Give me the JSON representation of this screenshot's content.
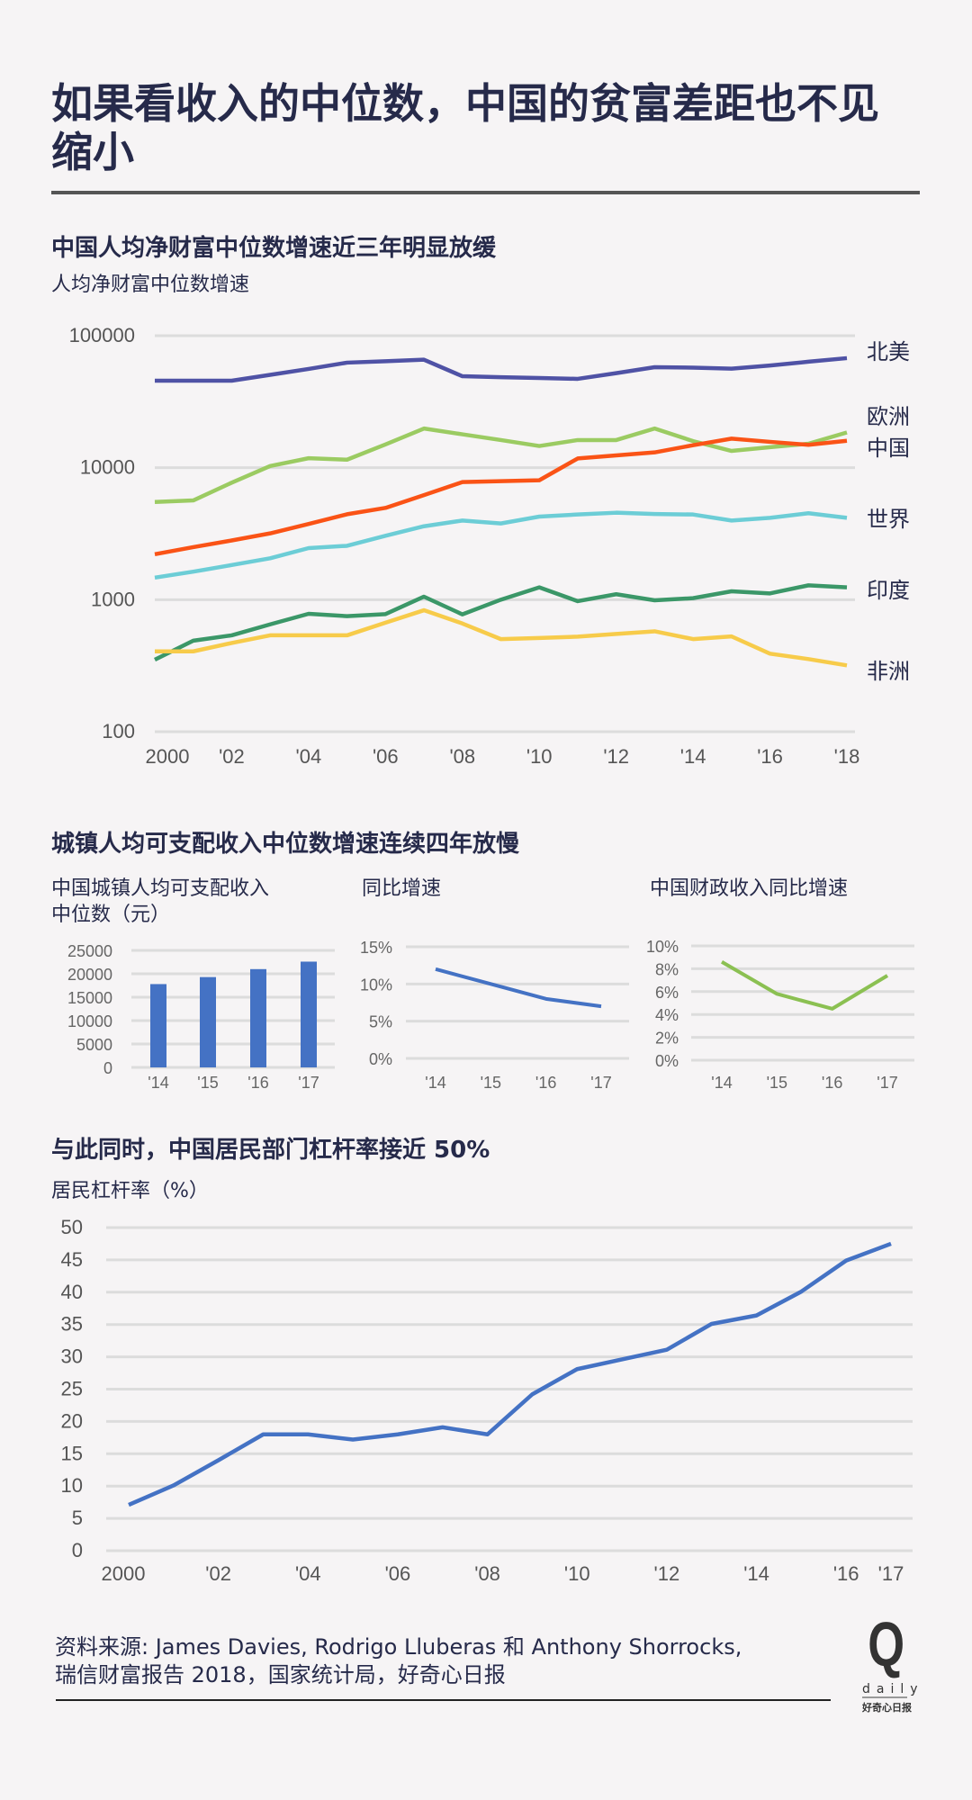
{
  "title": "如果看收入的中位数，中国的贫富差距也不见缩小",
  "section1": {
    "title": "中国人均净财富中位数增速近三年明显放缓",
    "unit": "人均净财富中位数增速"
  },
  "section2": {
    "title": "城镇人均可支配收入中位数增速连续四年放慢",
    "chart1_title_l1": "中国城镇人均可支配收入",
    "chart1_title_l2": "中位数（元）",
    "chart2_title": "同比增速",
    "chart3_title": "中国财政收入同比增速"
  },
  "section3": {
    "title": "与此同时，中国居民部门杠杆率接近 50%",
    "unit": "居民杠杆率（%）"
  },
  "footer": {
    "line1": "资料来源: James Davies, Rodrigo Lluberas 和 Anthony Shorrocks,",
    "line2": "瑞信财富报告 2018，国家统计局，好奇心日报",
    "logo_letter": "Q",
    "logo_word": "daily",
    "logo_cn": "好奇心日报"
  },
  "chart_data": [
    {
      "type": "line",
      "scale": "log",
      "ylim": [
        100,
        100000
      ],
      "yticks": [
        "100000",
        "10000",
        "1000",
        "100"
      ],
      "grid": true,
      "legend": "right (direct labels)",
      "x": [
        2000,
        2001,
        2002,
        2003,
        2004,
        2005,
        2006,
        2007,
        2008,
        2009,
        2010,
        2011,
        2012,
        2013,
        2014,
        2015,
        2016,
        2017,
        2018
      ],
      "xticks": [
        {
          "year": 2000,
          "label": "2000"
        },
        {
          "year": 2002,
          "label": "'02"
        },
        {
          "year": 2004,
          "label": "'04"
        },
        {
          "year": 2006,
          "label": "'06"
        },
        {
          "year": 2008,
          "label": "'08"
        },
        {
          "year": 2010,
          "label": "'10"
        },
        {
          "year": 2012,
          "label": "'12"
        },
        {
          "year": 2014,
          "label": "'14"
        },
        {
          "year": 2016,
          "label": "'16"
        },
        {
          "year": 2018,
          "label": "'18"
        }
      ],
      "series": [
        {
          "name": "北美",
          "color": "#4f52a5",
          "values": [
            45600,
            45600,
            45600,
            50500,
            56000,
            62500,
            64000,
            65800,
            49300,
            48500,
            47800,
            47100,
            52000,
            57700,
            57300,
            56300,
            59500,
            63500,
            67600
          ]
        },
        {
          "name": "欧洲",
          "color": "#9bcb62",
          "values": [
            5500,
            5650,
            7700,
            10300,
            11800,
            11500,
            15000,
            19800,
            17900,
            16200,
            14600,
            16200,
            16200,
            19800,
            15900,
            13400,
            14300,
            15200,
            18500
          ]
        },
        {
          "name": "中国",
          "color": "#fa5316",
          "values": [
            2210,
            2500,
            2810,
            3180,
            3750,
            4440,
            4960,
            6200,
            7780,
            7900,
            8030,
            11750,
            12400,
            13060,
            14800,
            16600,
            15700,
            14900,
            16000
          ]
        },
        {
          "name": "世界",
          "color": "#6ccdd6",
          "values": [
            1470,
            1630,
            1830,
            2060,
            2460,
            2560,
            3050,
            3600,
            3980,
            3780,
            4260,
            4420,
            4560,
            4460,
            4420,
            3980,
            4170,
            4520,
            4170
          ]
        },
        {
          "name": "印度",
          "color": "#3b9768",
          "values": [
            351,
            489,
            537,
            650,
            782,
            750,
            778,
            1054,
            774,
            1000,
            1240,
            975,
            1100,
            990,
            1027,
            1158,
            1116,
            1285,
            1240
          ]
        },
        {
          "name": "非洲",
          "color": "#f7cb4a",
          "values": [
            406,
            406,
            470,
            537,
            537,
            537,
            670,
            832,
            660,
            503,
            513,
            525,
            550,
            576,
            503,
            527,
            390,
            355,
            318
          ]
        }
      ]
    },
    {
      "type": "bar",
      "categories": [
        "'14",
        "'15",
        "'16",
        "'17"
      ],
      "values": [
        17800,
        19300,
        21000,
        22600
      ],
      "ylim": [
        0,
        25000
      ],
      "yticks": [
        "25000",
        "20000",
        "15000",
        "10000",
        "5000",
        "0"
      ],
      "color": "#4472c4",
      "grid": true
    },
    {
      "type": "line",
      "categories": [
        "'14",
        "'15",
        "'16",
        "'17"
      ],
      "values": [
        12,
        10,
        8,
        7
      ],
      "ylim": [
        0,
        15
      ],
      "yticks": [
        "15%",
        "10%",
        "5%",
        "0%"
      ],
      "color": "#4472c4",
      "grid": true
    },
    {
      "type": "line",
      "categories": [
        "'14",
        "'15",
        "'16",
        "'17"
      ],
      "values": [
        8.6,
        5.8,
        4.5,
        7.4
      ],
      "ylim": [
        0,
        10
      ],
      "yticks": [
        "10%",
        "8%",
        "6%",
        "4%",
        "2%",
        "0%"
      ],
      "color": "#8bc052",
      "grid": true
    },
    {
      "type": "line",
      "x": [
        2000,
        2001,
        2002,
        2003,
        2004,
        2005,
        2006,
        2007,
        2008,
        2009,
        2010,
        2011,
        2012,
        2013,
        2014,
        2015,
        2016,
        2017
      ],
      "values": [
        7.1,
        10.1,
        14,
        18,
        18,
        17.2,
        18,
        19.1,
        18,
        24.2,
        28.1,
        29.6,
        31.1,
        35.1,
        36.4,
        40.1,
        44.9,
        47.5
      ],
      "ylim": [
        0,
        50
      ],
      "yticks": [
        "50",
        "45",
        "40",
        "35",
        "30",
        "25",
        "20",
        "15",
        "10",
        "5",
        "0"
      ],
      "xticks": [
        {
          "year": 2000,
          "label": "2000"
        },
        {
          "year": 2002,
          "label": "'02"
        },
        {
          "year": 2004,
          "label": "'04"
        },
        {
          "year": 2006,
          "label": "'06"
        },
        {
          "year": 2008,
          "label": "'08"
        },
        {
          "year": 2010,
          "label": "'10"
        },
        {
          "year": 2012,
          "label": "'12"
        },
        {
          "year": 2014,
          "label": "'14"
        },
        {
          "year": 2016,
          "label": "'16"
        },
        {
          "year": 2017,
          "label": "'17"
        }
      ],
      "color": "#4472c4",
      "grid": true
    }
  ]
}
